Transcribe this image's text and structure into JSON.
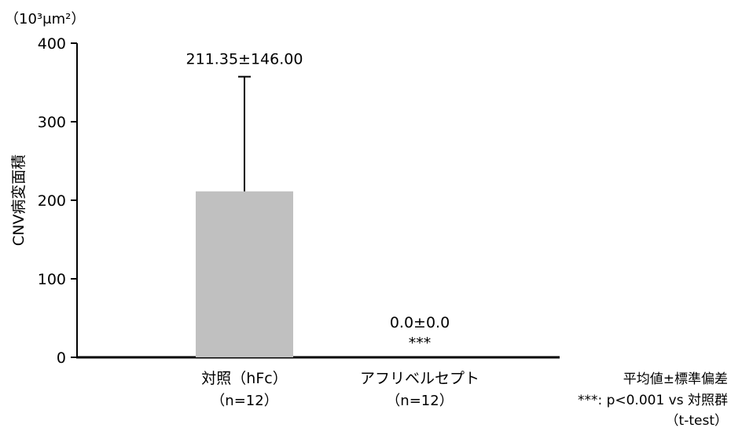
{
  "chart_data": {
    "type": "bar",
    "title": "",
    "xlabel": "",
    "ylabel": "CNV病変面積",
    "y_unit": "（10³μm²）",
    "ylim": [
      0,
      400
    ],
    "yticks": [
      0,
      100,
      200,
      300,
      400
    ],
    "categories": [
      "対照（hFc）",
      "アフリベルセプト"
    ],
    "category_sublabels": [
      "（n=12）",
      "（n=12）"
    ],
    "values": [
      211.35,
      0.0
    ],
    "errors": [
      146.0,
      0.0
    ],
    "value_labels": [
      "211.35±146.00",
      "0.0±0.0"
    ],
    "significance": [
      "",
      "***"
    ],
    "bar_color": "#c0c0c0",
    "grid": false,
    "notes": [
      "平均値±標準偏差",
      "***: p<0.001 vs 対照群",
      "（t-test）"
    ]
  }
}
